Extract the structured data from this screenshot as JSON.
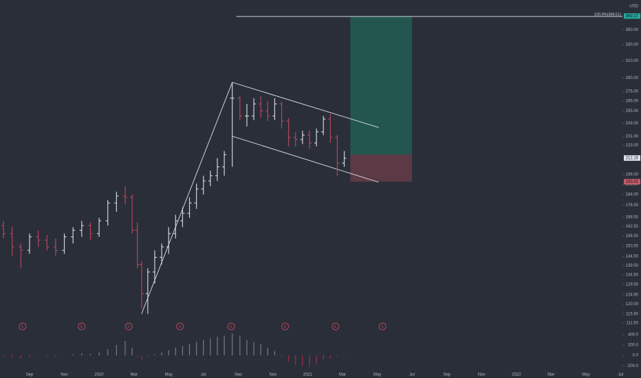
{
  "chart_data": {
    "type": "ohlc",
    "log_scale": true,
    "currency": "USD",
    "xlim": [
      6.3,
      42.1
    ],
    "xticks": [
      {
        "value": 8,
        "label": "Sep"
      },
      {
        "value": 10,
        "label": "Nov"
      },
      {
        "value": 12,
        "label": "2020"
      },
      {
        "value": 14,
        "label": "Mar"
      },
      {
        "value": 16,
        "label": "May"
      },
      {
        "value": 18,
        "label": "Jul"
      },
      {
        "value": 20,
        "label": "Sep"
      },
      {
        "value": 22,
        "label": "Nov"
      },
      {
        "value": 24,
        "label": "2021"
      },
      {
        "value": 26,
        "label": "Mar"
      },
      {
        "value": 28,
        "label": "May"
      },
      {
        "value": 30,
        "label": "Jul"
      },
      {
        "value": 32,
        "label": "Sep"
      },
      {
        "value": 34,
        "label": "Nov"
      },
      {
        "value": 36,
        "label": "2022"
      },
      {
        "value": 38,
        "label": "Mar"
      },
      {
        "value": 40,
        "label": "May"
      },
      {
        "value": 42,
        "label": "Jul"
      }
    ],
    "ylim": [
      108.5,
      393
    ],
    "yticks": [
      {
        "value": 350,
        "label": "350.00"
      },
      {
        "value": 330,
        "label": "330.00"
      },
      {
        "value": 310,
        "label": "310.00"
      },
      {
        "value": 290,
        "label": "290.00"
      },
      {
        "value": 275,
        "label": "275.00"
      },
      {
        "value": 265,
        "label": "265.00"
      },
      {
        "value": 255,
        "label": "255.00"
      },
      {
        "value": 243,
        "label": "243.00"
      },
      {
        "value": 231,
        "label": "231.00"
      },
      {
        "value": 223,
        "label": "223.00"
      },
      {
        "value": 199,
        "label": "199.00"
      },
      {
        "value": 191.5,
        "label": "191.50"
      },
      {
        "value": 184,
        "label": "184.00"
      },
      {
        "value": 176.5,
        "label": "176.50"
      },
      {
        "value": 168.5,
        "label": "168.50"
      },
      {
        "value": 162.5,
        "label": "162.50"
      },
      {
        "value": 156.5,
        "label": "156.50"
      },
      {
        "value": 150.5,
        "label": "150.50"
      },
      {
        "value": 144.5,
        "label": "144.50"
      },
      {
        "value": 139.5,
        "label": "139.50"
      },
      {
        "value": 134.5,
        "label": "134.50"
      },
      {
        "value": 129.5,
        "label": "129.50"
      },
      {
        "value": 124.5,
        "label": "124.50"
      },
      {
        "value": 120,
        "label": "120.00"
      },
      {
        "value": 115.5,
        "label": "115.50"
      },
      {
        "value": 111.5,
        "label": "111.50"
      }
    ],
    "x": [
      6.5,
      7,
      7.5,
      8,
      8.5,
      9,
      9.5,
      10,
      10.5,
      11,
      11.5,
      12,
      12.5,
      13,
      13.5,
      13.9,
      14.2,
      14.45,
      14.8,
      15.2,
      15.6,
      16,
      16.4,
      16.8,
      17.2,
      17.6,
      18,
      18.4,
      18.8,
      19.2,
      19.66,
      20.1,
      20.5,
      20.9,
      21.3,
      21.7,
      22.1,
      22.5,
      22.9,
      23.3,
      23.7,
      24.1,
      24.5,
      24.9,
      25.3,
      25.7,
      26.1
    ],
    "open": [
      163,
      158,
      150,
      148,
      156,
      154,
      150,
      148,
      156,
      160,
      163,
      158,
      166,
      178,
      183,
      182,
      160,
      140,
      125,
      136,
      144,
      150,
      158,
      166,
      171,
      178,
      188,
      194,
      198,
      205,
      268,
      268,
      250,
      250,
      262,
      255,
      250,
      262,
      245,
      230,
      228,
      232,
      225,
      235,
      247,
      230,
      208
    ],
    "high": [
      166,
      162,
      152,
      158,
      160,
      157,
      155,
      158,
      162,
      166,
      165,
      168,
      180,
      186,
      190,
      184,
      165,
      142,
      138,
      148,
      152,
      162,
      170,
      175,
      182,
      192,
      198,
      202,
      212,
      218,
      285,
      270,
      262,
      268,
      270,
      265,
      268,
      264,
      248,
      235,
      236,
      236,
      238,
      250,
      252,
      232,
      218
    ],
    "low": [
      155,
      145,
      138,
      146,
      150,
      148,
      145,
      146,
      152,
      156,
      154,
      156,
      163,
      172,
      177,
      158,
      138,
      118,
      115.5,
      130,
      140,
      146,
      155,
      162,
      168,
      174,
      184,
      190,
      194,
      198,
      205,
      246,
      240,
      246,
      248,
      245,
      246,
      238,
      222,
      222,
      224,
      220,
      222,
      232,
      225,
      198,
      205
    ],
    "close": [
      158,
      150,
      148,
      156,
      154,
      150,
      148,
      156,
      160,
      163,
      158,
      166,
      178,
      183,
      182,
      160,
      140,
      125,
      136,
      144,
      150,
      158,
      166,
      171,
      178,
      188,
      194,
      198,
      205,
      215,
      268,
      250,
      250,
      262,
      255,
      250,
      262,
      245,
      230,
      228,
      232,
      225,
      235,
      247,
      230,
      208,
      212
    ],
    "up_color": "#d1d4dc",
    "down_color": "#b2475a",
    "trendlines": [
      [
        [
          14.44,
          115.5
        ],
        [
          19.66,
          285
        ]
      ],
      [
        [
          19.66,
          285
        ],
        [
          28.08,
          239
        ]
      ],
      [
        [
          19.66,
          231
        ],
        [
          28.08,
          193
        ]
      ]
    ],
    "fib_line": {
      "value": 368.51,
      "label": "100.0%(368.51)",
      "x": 19.9
    },
    "position": {
      "x": [
        26.45,
        30.0
      ],
      "entry": 215,
      "target": 369.17,
      "stop": 193.41,
      "profit_color": "#22564e",
      "loss_color": "#5b3a45"
    },
    "price_tags": [
      {
        "value": 369.17,
        "label": "369.17",
        "color": "#26a69a"
      },
      {
        "value": 212.15,
        "label": "212.15",
        "color": "#e0e3eb"
      },
      {
        "value": 193.41,
        "label": "193.41",
        "color": "#c45c6a"
      }
    ],
    "earnings": {
      "x": [
        7.6,
        11.0,
        13.7,
        16.65,
        19.6,
        22.7,
        25.6,
        28.3
      ],
      "label": "E"
    },
    "indicator": {
      "ylim": [
        -370,
        465
      ],
      "yticks": [
        {
          "value": 400,
          "label": "400.0"
        },
        {
          "value": 200,
          "label": "200.0"
        },
        {
          "value": 0,
          "label": "0.0"
        },
        {
          "value": -200,
          "label": "-200.0"
        }
      ],
      "values": [
        -20,
        -40,
        -60,
        -30,
        -10,
        -20,
        -30,
        -10,
        20,
        40,
        30,
        60,
        120,
        200,
        280,
        150,
        -30,
        -80,
        -40,
        20,
        60,
        100,
        150,
        180,
        220,
        260,
        300,
        330,
        360,
        380,
        420,
        380,
        300,
        260,
        220,
        150,
        80,
        -20,
        -120,
        -180,
        -200,
        -220,
        -170,
        -80,
        -60,
        -20,
        -10
      ],
      "pos_color": "#787b86",
      "neg_color": "#9c2f4a"
    }
  }
}
